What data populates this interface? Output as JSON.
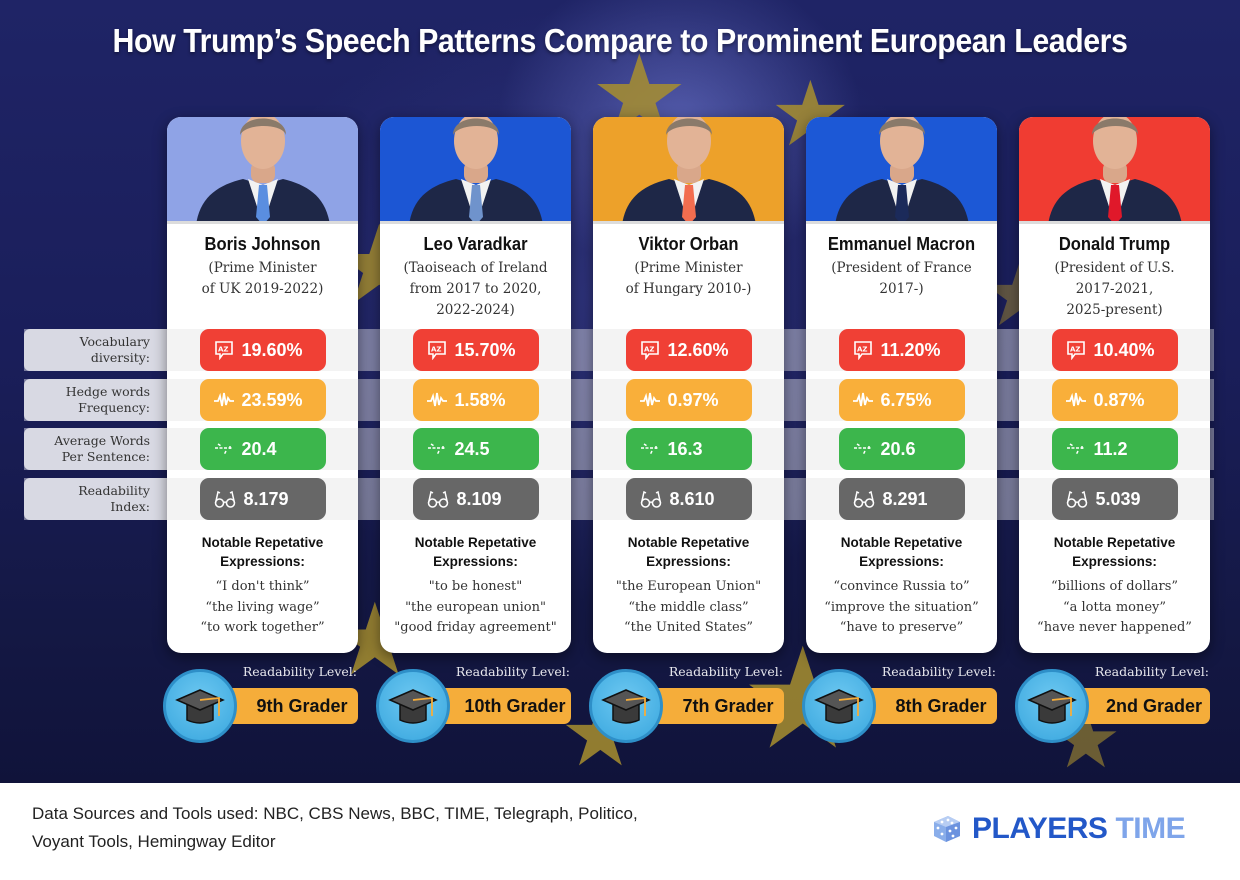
{
  "title": "How Trump’s Speech Patterns Compare to Prominent European Leaders",
  "colors": {
    "vocabulary": "#f04035",
    "hedge": "#f9af3a",
    "words_per_sentence": "#3cb64c",
    "readability": "#676767",
    "level_badge": "#f5ad3a",
    "background": "#1c2060"
  },
  "row_labels": [
    {
      "line1": "Vocabulary",
      "line2": "diversity:",
      "icon": "az-speech-bubble-icon"
    },
    {
      "line1": "Hedge words",
      "line2": "Frequency:",
      "icon": "waveform-icon"
    },
    {
      "line1": "Average Words",
      "line2": "Per Sentence:",
      "icon": "sentence-split-icon"
    },
    {
      "line1": "Readability",
      "line2": "Index:",
      "icon": "glasses-icon"
    }
  ],
  "notable_heading_line1": "Notable Repetative",
  "notable_heading_line2": "Expressions:",
  "level_label": "Readability Level:",
  "leaders": [
    {
      "name": "Boris Johnson",
      "role": [
        "(Prime Minister",
        "of UK 2019-2022)",
        ""
      ],
      "bg": "#8fa3e6",
      "tie": "#5a8ee0",
      "vocabulary": "19.60%",
      "hedge": "23.59%",
      "words_per_sentence": "20.4",
      "readability": "8.179",
      "expressions": [
        "“I don't think”",
        "“the living wage”",
        "“to work together”"
      ],
      "level": "9th Grader"
    },
    {
      "name": "Leo Varadkar",
      "role": [
        "(Taoiseach of Ireland",
        "from 2017 to 2020,",
        "2022-2024)"
      ],
      "bg": "#1c56d4",
      "tie": "#6f93cc",
      "vocabulary": "15.70%",
      "hedge": "1.58%",
      "words_per_sentence": "24.5",
      "readability": "8.109",
      "expressions": [
        "\"to be honest\"",
        "\"the european union\"",
        "\"good friday agreement\""
      ],
      "level": "10th Grader"
    },
    {
      "name": "Viktor Orban",
      "role": [
        "(Prime Minister",
        "of Hungary 2010-)",
        ""
      ],
      "bg": "#eda12a",
      "tie": "#f26d4f",
      "vocabulary": "12.60%",
      "hedge": "0.97%",
      "words_per_sentence": "16.3",
      "readability": "8.610",
      "expressions": [
        "\"the European Union\"",
        "“the middle class”",
        "“the United States”"
      ],
      "level": "7th Grader"
    },
    {
      "name": "Emmanuel Macron",
      "role": [
        "(President of France",
        "2017-)",
        ""
      ],
      "bg": "#1c58d6",
      "tie": "#1b2a5a",
      "vocabulary": "11.20%",
      "hedge": "6.75%",
      "words_per_sentence": "20.6",
      "readability": "8.291",
      "expressions": [
        "“convince Russia to”",
        "“improve the situation”",
        "“have to preserve”"
      ],
      "level": "8th Grader"
    },
    {
      "name": "Donald Trump",
      "role": [
        "(President of U.S.",
        "2017-2021,",
        "2025-present)"
      ],
      "bg": "#f03c32",
      "tie": "#e0182a",
      "vocabulary": "10.40%",
      "hedge": "0.87%",
      "words_per_sentence": "11.2",
      "readability": "5.039",
      "expressions": [
        "“billions of dollars”",
        "“a lotta money”",
        "“have never happened”"
      ],
      "level": "2nd Grader"
    }
  ],
  "footer": {
    "sources_line1": "Data Sources and Tools used: NBC, CBS News, BBC, TIME, Telegraph, Politico,",
    "sources_line2": "Voyant Tools, Hemingway Editor",
    "logo_part1": "PLAYERS",
    "logo_part2": "TIME"
  }
}
